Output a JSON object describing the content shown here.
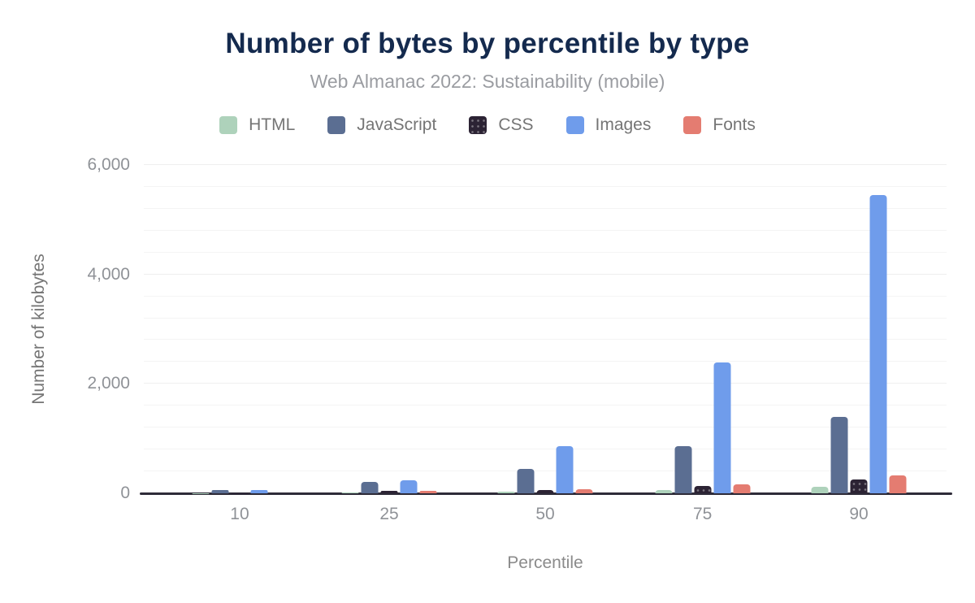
{
  "header": {
    "title": "Number of bytes by percentile by type",
    "subtitle": "Web Almanac 2022: Sustainability (mobile)"
  },
  "colors": {
    "title": "#142a4e",
    "subtitle": "#9a9ca1",
    "axis_line": "#2e2b38",
    "tick_label": "#8f9297",
    "legend_label": "#757575"
  },
  "chart_data": {
    "type": "bar",
    "title": "Number of bytes by percentile by type",
    "subtitle": "Web Almanac 2022: Sustainability (mobile)",
    "xlabel": "Percentile",
    "ylabel": "Number of kilobytes",
    "categories": [
      "10",
      "25",
      "50",
      "75",
      "90"
    ],
    "series": [
      {
        "name": "HTML",
        "color": "#aed2bb",
        "pattern": "solid",
        "values": [
          6,
          15,
          30,
          65,
          125
        ]
      },
      {
        "name": "JavaScript",
        "color": "#5b6e92",
        "pattern": "solid",
        "values": [
          55,
          210,
          450,
          855,
          1390
        ]
      },
      {
        "name": "CSS",
        "color": "#2c2334",
        "pattern": "dots",
        "values": [
          6,
          45,
          60,
          130,
          250
        ]
      },
      {
        "name": "Images",
        "color": "#6f9ceb",
        "pattern": "solid",
        "values": [
          55,
          245,
          865,
          2390,
          5455
        ]
      },
      {
        "name": "Fonts",
        "color": "#e47c71",
        "pattern": "solid",
        "values": [
          0,
          40,
          80,
          165,
          325
        ]
      }
    ],
    "ylim": [
      0,
      6000
    ],
    "yticks": [
      {
        "value": 0,
        "label": "0"
      },
      {
        "value": 2000,
        "label": "2,000"
      },
      {
        "value": 4000,
        "label": "4,000"
      },
      {
        "value": 6000,
        "label": "6,000"
      }
    ],
    "minor_grid_step": 400,
    "grid": true,
    "legend_position": "top",
    "group_center_percents": [
      11.94,
      30.57,
      50.0,
      69.6,
      89.07
    ]
  }
}
